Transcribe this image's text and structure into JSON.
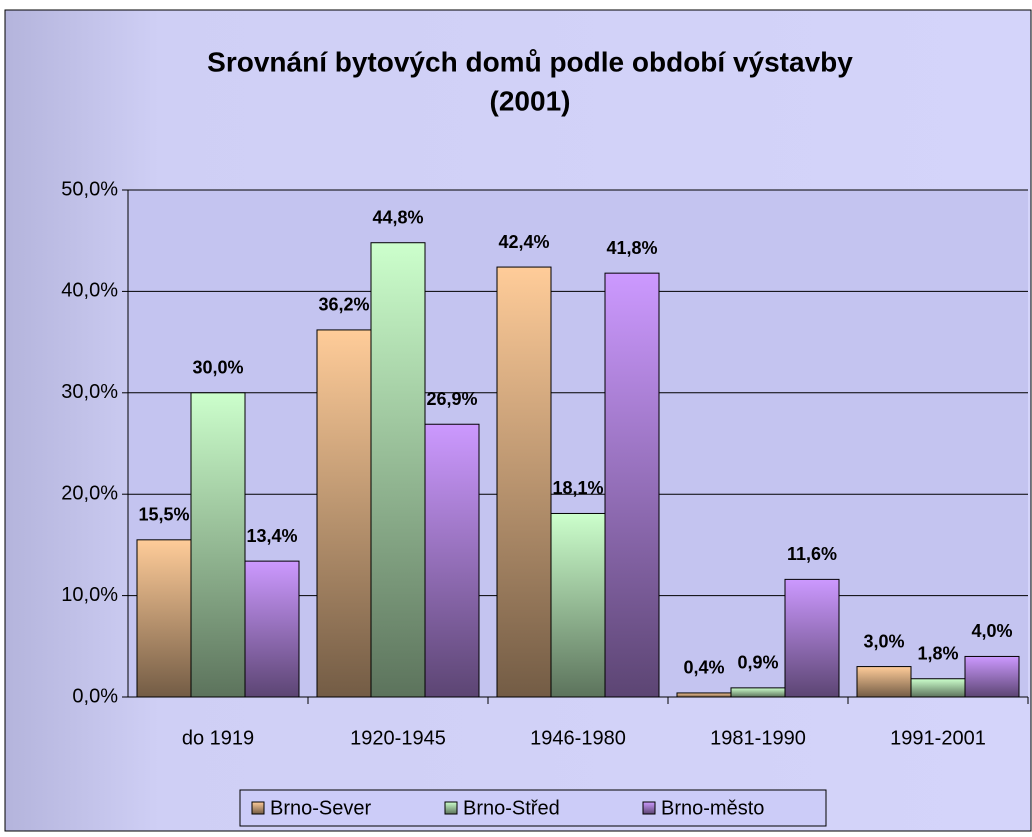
{
  "chart_data": {
    "type": "bar",
    "title": [
      "Srovnání bytových domů podle období výstavby",
      "(2001)"
    ],
    "categories": [
      "do 1919",
      "1920-1945",
      "1946-1980",
      "1981-1990",
      "1991-2001"
    ],
    "series": [
      {
        "name": "Brno-Sever",
        "color": "#ffcc99",
        "values": [
          15.5,
          36.2,
          42.4,
          0.4,
          3.0
        ],
        "value_labels": [
          "15,5%",
          "36,2%",
          "42,4%",
          "0,4%",
          "3,0%"
        ]
      },
      {
        "name": "Brno-Střed",
        "color": "#ccffcc",
        "values": [
          30.0,
          44.8,
          18.1,
          0.9,
          1.8
        ],
        "value_labels": [
          "30,0%",
          "44,8%",
          "18,1%",
          "0,9%",
          "1,8%"
        ]
      },
      {
        "name": "Brno-město",
        "color": "#cc99ff",
        "values": [
          13.4,
          26.9,
          41.8,
          11.6,
          4.0
        ],
        "value_labels": [
          "13,4%",
          "26,9%",
          "41,8%",
          "11,6%",
          "4,0%"
        ]
      }
    ],
    "ylim": [
      0,
      50
    ],
    "yticks": [
      {
        "value": 0,
        "label": "0,0%"
      },
      {
        "value": 10,
        "label": "10,0%"
      },
      {
        "value": 20,
        "label": "20,0%"
      },
      {
        "value": 30,
        "label": "30,0%"
      },
      {
        "value": 40,
        "label": "40,0%"
      },
      {
        "value": 50,
        "label": "50,0%"
      }
    ],
    "grid": true,
    "legend": "bottom"
  }
}
